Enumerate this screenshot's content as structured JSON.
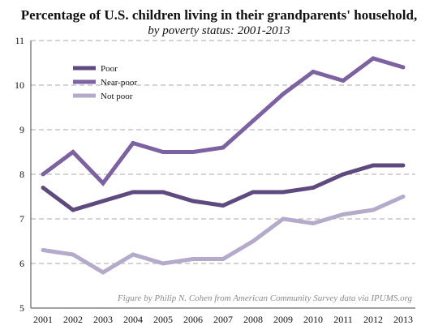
{
  "chart_data": {
    "type": "line",
    "title": "Percentage of U.S. children living in their grandparents' household,",
    "subtitle": "by poverty status: 2001-2013",
    "credit": "Figure by Philip N. Cohen from American Community Survey data via IPUMS.org",
    "x": [
      "2001",
      "2002",
      "2003",
      "2004",
      "2005",
      "2006",
      "2007",
      "2008",
      "2009",
      "2010",
      "2011",
      "2012",
      "2013"
    ],
    "yticks": [
      "5",
      "6",
      "7",
      "8",
      "9",
      "10",
      "11"
    ],
    "ylim": [
      5,
      11
    ],
    "grid": true,
    "legend_position": "top-left",
    "series": [
      {
        "name": "Poor",
        "color": "#5e4a7e",
        "values": [
          7.7,
          7.2,
          7.4,
          7.6,
          7.6,
          7.4,
          7.3,
          7.6,
          7.6,
          7.7,
          8.0,
          8.2,
          8.2
        ]
      },
      {
        "name": "Near-poor",
        "color": "#7c62a1",
        "values": [
          8.0,
          8.5,
          7.8,
          8.7,
          8.5,
          8.5,
          8.6,
          9.2,
          9.8,
          10.3,
          10.1,
          10.6,
          10.4
        ]
      },
      {
        "name": "Not poor",
        "color": "#b4aac9",
        "values": [
          6.3,
          6.2,
          5.8,
          6.2,
          6.0,
          6.1,
          6.1,
          6.5,
          7.0,
          6.9,
          7.1,
          7.2,
          7.5
        ]
      }
    ]
  }
}
